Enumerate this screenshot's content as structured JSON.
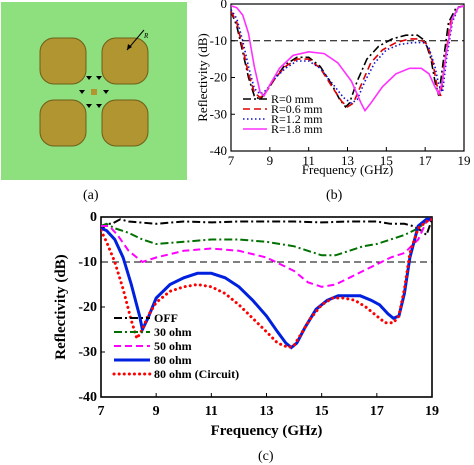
{
  "panel_labels": {
    "a": "(a)",
    "b": "(b)",
    "c": "(c)"
  },
  "unit_cell": {
    "background_color": "#8ee07e",
    "patch_color": "#b09530",
    "patch_edge_color": "#6d5e1a",
    "radius_label": "R"
  },
  "chart_data": [
    {
      "id": "b",
      "type": "line",
      "xlabel": "Frequency (GHz)",
      "ylabel": "Reflectivity (dB)",
      "xlim": [
        7,
        19
      ],
      "ylim": [
        -40,
        0
      ],
      "xticks": [
        7,
        9,
        11,
        13,
        15,
        17,
        19
      ],
      "yticks": [
        0,
        -10,
        -20,
        -30,
        -40
      ],
      "reference_line": -10,
      "legend_position": "bottom-left",
      "series": [
        {
          "name": "R=0 mm",
          "color": "#000000",
          "style": "dashdot",
          "x": [
            7,
            7.3,
            7.6,
            7.9,
            8.2,
            8.5,
            8.8,
            9.3,
            9.8,
            10.4,
            11.0,
            11.6,
            12.2,
            12.6,
            12.9,
            13.1,
            13.5,
            14.0,
            14.6,
            15.3,
            16.0,
            16.6,
            17.0,
            17.3,
            17.5,
            17.7,
            17.9,
            18.2,
            18.6,
            19
          ],
          "y": [
            -2,
            -6,
            -13,
            -20,
            -25,
            -26,
            -24,
            -20,
            -16.5,
            -14.5,
            -14.5,
            -17,
            -22,
            -26,
            -28,
            -27,
            -21,
            -15,
            -11.5,
            -9.5,
            -8.5,
            -8.5,
            -10,
            -15,
            -21,
            -25,
            -17,
            -5,
            -1,
            -0.5
          ]
        },
        {
          "name": "R=0.6 mm",
          "color": "#e00000",
          "style": "dashed",
          "x": [
            7,
            7.3,
            7.6,
            7.9,
            8.2,
            8.5,
            8.8,
            9.3,
            9.8,
            10.4,
            11.0,
            11.6,
            12.2,
            12.7,
            13.0,
            13.3,
            13.7,
            14.2,
            14.8,
            15.5,
            16.2,
            16.7,
            17.1,
            17.4,
            17.6,
            17.8,
            18.0,
            18.3,
            18.7,
            19
          ],
          "y": [
            -2,
            -5,
            -12,
            -19,
            -24,
            -25.5,
            -24,
            -20,
            -17,
            -15,
            -15,
            -17.5,
            -22.5,
            -26.5,
            -28,
            -27,
            -22,
            -16,
            -12.5,
            -10.5,
            -9.5,
            -9.5,
            -11,
            -16,
            -22,
            -25,
            -16,
            -5,
            -1,
            -0.5
          ]
        },
        {
          "name": "R=1.2 mm",
          "color": "#1010d0",
          "style": "dotted",
          "x": [
            7,
            7.3,
            7.6,
            7.9,
            8.2,
            8.5,
            8.8,
            9.3,
            9.8,
            10.4,
            11.0,
            11.6,
            12.2,
            12.8,
            13.2,
            13.5,
            13.9,
            14.4,
            15.0,
            15.7,
            16.4,
            16.9,
            17.2,
            17.5,
            17.7,
            17.9,
            18.1,
            18.4,
            18.7,
            19
          ],
          "y": [
            -1.5,
            -4,
            -10,
            -17,
            -23,
            -24.5,
            -23.5,
            -20,
            -17.5,
            -15.5,
            -15.5,
            -17.5,
            -21.5,
            -25.5,
            -27,
            -26,
            -21,
            -16,
            -12.5,
            -11,
            -10.5,
            -10.5,
            -12,
            -17,
            -22,
            -24,
            -15,
            -5,
            -1,
            -0.5
          ]
        },
        {
          "name": "R=1.8 mm",
          "color": "#ff30ff",
          "style": "solid",
          "x": [
            7,
            7.3,
            7.6,
            7.9,
            8.2,
            8.5,
            8.7,
            9.0,
            9.5,
            10.2,
            11.0,
            11.8,
            12.5,
            13.2,
            13.7,
            13.9,
            14.2,
            14.8,
            15.5,
            16.2,
            16.8,
            17.2,
            17.5,
            17.7,
            17.9,
            18.1,
            18.4,
            18.7,
            19
          ],
          "y": [
            -0.5,
            -1,
            -3,
            -8,
            -17,
            -24,
            -25,
            -22,
            -17.5,
            -14,
            -13,
            -13.5,
            -16,
            -21,
            -27,
            -29,
            -27,
            -22.5,
            -19,
            -17.5,
            -17.5,
            -19,
            -22.5,
            -24.5,
            -21,
            -13,
            -4,
            -1,
            -0.5
          ]
        }
      ]
    },
    {
      "id": "c",
      "type": "line",
      "xlabel": "Frequency (GHz)",
      "ylabel": "Reflectivity (dB)",
      "xlim": [
        7,
        19
      ],
      "ylim": [
        -40,
        0
      ],
      "xticks": [
        7,
        9,
        11,
        13,
        15,
        17,
        19
      ],
      "yticks": [
        0,
        -10,
        -20,
        -30,
        -40
      ],
      "reference_line": -10,
      "legend_position": "bottom-left",
      "series": [
        {
          "name": "OFF",
          "color": "#000000",
          "style": "dashdot",
          "x": [
            7,
            7.2,
            7.4,
            7.7,
            8,
            9,
            10,
            11,
            12,
            13,
            14,
            15,
            16,
            17,
            17.5,
            18,
            18.3,
            18.6,
            18.8,
            19
          ],
          "y": [
            -3,
            -1.5,
            -1.5,
            -0.5,
            -1,
            -1.5,
            -1,
            -1.2,
            -1,
            -1,
            -1,
            -1.2,
            -1,
            -1,
            -1.5,
            -1.5,
            -2,
            -3,
            -4,
            -0.5
          ]
        },
        {
          "name": "30 ohm",
          "color": "#007000",
          "style": "dashdot",
          "x": [
            7,
            7.2,
            7.5,
            8,
            8.5,
            9,
            10,
            11,
            12,
            13,
            14,
            14.5,
            15,
            15.5,
            16,
            16.5,
            17,
            17.5,
            18,
            18.5,
            18.8,
            19
          ],
          "y": [
            -2,
            -1.5,
            -2.5,
            -3.5,
            -5,
            -6,
            -5.5,
            -5,
            -5,
            -5.5,
            -6.5,
            -7.5,
            -8.5,
            -8.5,
            -7.5,
            -6.5,
            -6,
            -5,
            -4,
            -2.5,
            -1,
            -0.5
          ]
        },
        {
          "name": "50 ohm",
          "color": "#ff00ff",
          "style": "dashed",
          "x": [
            7,
            7.3,
            7.6,
            8,
            8.5,
            9,
            10,
            11,
            12,
            13,
            14,
            14.5,
            15,
            15.5,
            16,
            16.5,
            17,
            17.5,
            18,
            18.5,
            18.8,
            19
          ],
          "y": [
            -2,
            -2,
            -4,
            -7.5,
            -10,
            -9,
            -7.5,
            -7,
            -7.5,
            -9,
            -12,
            -14.5,
            -15.5,
            -15,
            -13.5,
            -12,
            -10.5,
            -9,
            -8,
            -5,
            -1,
            -0.5
          ]
        },
        {
          "name": "80 ohm",
          "color": "#0020e0",
          "style": "solid",
          "x": [
            7,
            7.2,
            7.5,
            7.8,
            8.1,
            8.4,
            8.5,
            8.7,
            9.0,
            9.5,
            10.0,
            10.5,
            11.0,
            11.5,
            12.0,
            12.5,
            13.0,
            13.4,
            13.7,
            13.9,
            14.1,
            14.4,
            14.8,
            15.2,
            15.6,
            16.0,
            16.4,
            16.8,
            17.1,
            17.4,
            17.6,
            17.8,
            18.0,
            18.2,
            18.5,
            18.8,
            19
          ],
          "y": [
            -2.5,
            -3,
            -5,
            -9,
            -15,
            -22,
            -25,
            -22.5,
            -18,
            -15,
            -13.5,
            -12.5,
            -12.5,
            -13.5,
            -15.5,
            -18.5,
            -22,
            -25.5,
            -28,
            -29,
            -28,
            -24.5,
            -20.5,
            -18.5,
            -17.5,
            -17.5,
            -17.5,
            -18.5,
            -19.5,
            -21.5,
            -22.5,
            -22,
            -17,
            -9,
            -2,
            -0.5,
            -0.5
          ]
        },
        {
          "name": "80 ohm (Circuit)",
          "color": "#ff0000",
          "style": "dotted",
          "x": [
            7,
            7.2,
            7.5,
            7.8,
            8.1,
            8.3,
            8.5,
            8.7,
            9.0,
            9.5,
            10.0,
            10.5,
            11.0,
            11.5,
            12.0,
            12.5,
            13.0,
            13.4,
            13.8,
            14.0,
            14.2,
            14.6,
            15.0,
            15.4,
            15.8,
            16.2,
            16.6,
            17.0,
            17.3,
            17.6,
            17.8,
            18.0,
            18.2,
            18.5,
            18.8,
            19
          ],
          "y": [
            -3,
            -5.5,
            -10,
            -16,
            -23,
            -27,
            -25,
            -22,
            -19,
            -16.5,
            -15.5,
            -15,
            -15.5,
            -17,
            -19.5,
            -22.5,
            -25.5,
            -28,
            -29,
            -28.5,
            -26.5,
            -22.5,
            -19.5,
            -18,
            -18,
            -18.5,
            -20,
            -22,
            -23.5,
            -23.5,
            -22,
            -16,
            -8,
            -2.5,
            -1,
            -0.5
          ]
        }
      ]
    }
  ]
}
